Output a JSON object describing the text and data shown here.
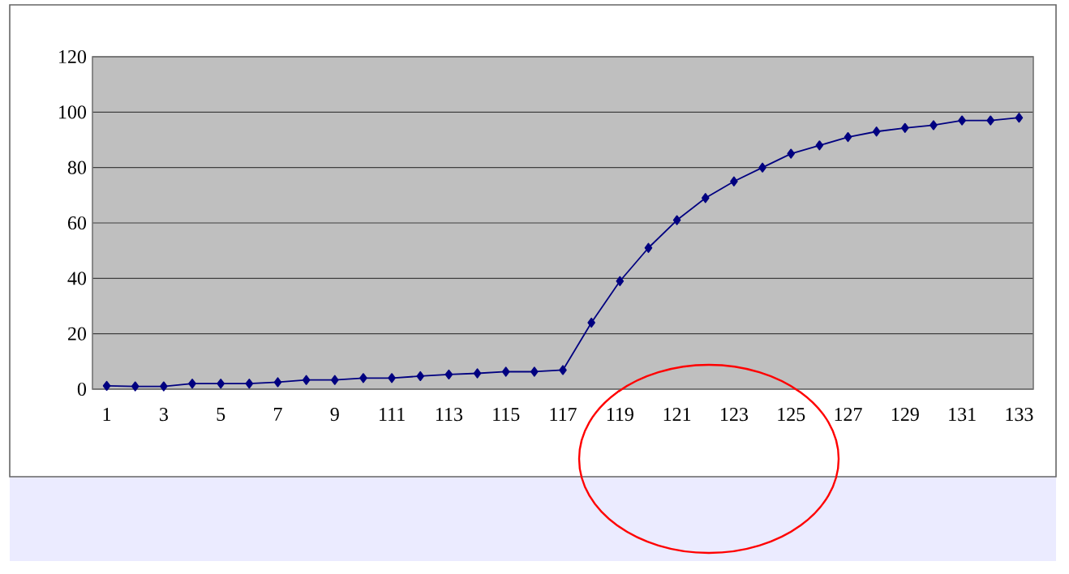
{
  "chart_data": {
    "type": "line",
    "categories": [
      "1",
      null,
      "3",
      null,
      "5",
      null,
      "7",
      null,
      "9",
      null,
      "111",
      null,
      "113",
      null,
      "115",
      null,
      "117",
      null,
      "119",
      null,
      "121",
      null,
      "123",
      null,
      "125",
      null,
      "127",
      null,
      "129",
      null,
      "131",
      null,
      "133"
    ],
    "series": [
      {
        "color": "#000080",
        "values": [
          1.2,
          1,
          1,
          2,
          2,
          2,
          2.5,
          3.3,
          3.3,
          4,
          4,
          4.7,
          5.3,
          5.7,
          6.3,
          6.3,
          6.9,
          24,
          39,
          51,
          61,
          69,
          75,
          80,
          85,
          88,
          91,
          93,
          94.3,
          95.3,
          97,
          97,
          98
        ]
      }
    ],
    "ylim": [
      0,
      120
    ],
    "yticks": [
      0,
      20,
      40,
      60,
      80,
      100,
      120
    ],
    "grid": "y",
    "marker": "diamond",
    "line_style": "solid"
  }
}
